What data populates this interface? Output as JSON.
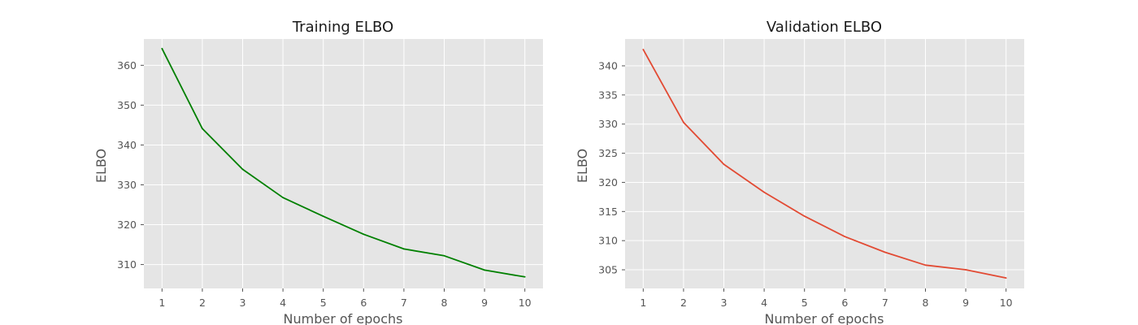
{
  "chart_data": [
    {
      "type": "line",
      "title": "Training ELBO",
      "xlabel": "Number of epochs",
      "ylabel": "ELBO",
      "x": [
        1,
        2,
        3,
        4,
        5,
        6,
        7,
        8,
        9,
        10
      ],
      "y": [
        364.2,
        344.1,
        333.9,
        326.8,
        322.1,
        317.6,
        313.9,
        312.2,
        308.6,
        306.9
      ],
      "xticks": [
        1,
        2,
        3,
        4,
        5,
        6,
        7,
        8,
        9,
        10
      ],
      "yticks": [
        310,
        320,
        330,
        340,
        350,
        360
      ],
      "xlim": [
        0.55,
        10.45
      ],
      "ylim": [
        304.0,
        366.6
      ],
      "color": "#008000",
      "background": "#e5e5e5",
      "grid": true
    },
    {
      "type": "line",
      "title": "Validation ELBO",
      "xlabel": "Number of epochs",
      "ylabel": "ELBO",
      "x": [
        1,
        2,
        3,
        4,
        5,
        6,
        7,
        8,
        9,
        10
      ],
      "y": [
        342.8,
        330.3,
        323.1,
        318.3,
        314.2,
        310.7,
        308.0,
        305.8,
        305.0,
        303.6
      ],
      "xticks": [
        1,
        2,
        3,
        4,
        5,
        6,
        7,
        8,
        9,
        10
      ],
      "yticks": [
        305,
        310,
        315,
        320,
        325,
        330,
        335,
        340
      ],
      "xlim": [
        0.55,
        10.45
      ],
      "ylim": [
        301.8,
        344.6
      ],
      "color": "#e24a33",
      "background": "#e5e5e5",
      "grid": true
    }
  ]
}
